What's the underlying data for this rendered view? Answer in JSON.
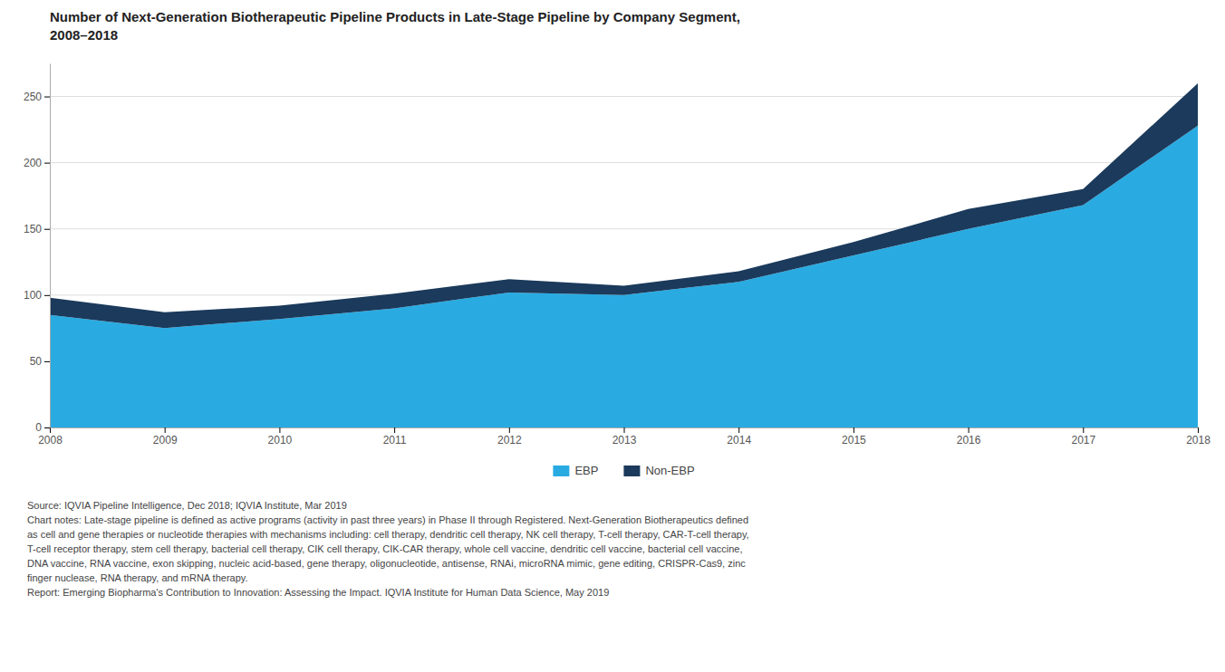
{
  "chart_data": {
    "type": "area",
    "title": "Number of Next-Generation Biotherapeutic Pipeline Products in Late-Stage Pipeline by Company Segment,\n2008–2018",
    "x": [
      2008,
      2009,
      2010,
      2011,
      2012,
      2013,
      2014,
      2015,
      2016,
      2017,
      2018
    ],
    "series": [
      {
        "name": "EBP",
        "color": "#29ABE2",
        "values": [
          85,
          75,
          82,
          90,
          102,
          100,
          110,
          130,
          150,
          168,
          228
        ]
      },
      {
        "name": "Non-EBP",
        "color": "#1B3A5C",
        "values": [
          13,
          12,
          10,
          11,
          10,
          7,
          8,
          10,
          15,
          12,
          32
        ]
      }
    ],
    "stacked": true,
    "xlim": [
      2008,
      2018
    ],
    "xticks": [
      2008,
      2009,
      2010,
      2011,
      2012,
      2013,
      2014,
      2015,
      2016,
      2017,
      2018
    ],
    "ylim": [
      0,
      275
    ],
    "yticks": [
      0,
      50,
      100,
      150,
      200,
      250
    ],
    "grid": true,
    "legend": "bottom",
    "annotations": [
      "Source: IQVIA Pipeline Intelligence, Dec 2018; IQVIA Institute, Mar 2019",
      "Chart notes: Late-stage pipeline is defined as active programs (activity in past three years) in Phase II through Registered. Next-Generation Biotherapeutics defined",
      "as cell and gene therapies or nucleotide therapies with mechanisms including: cell therapy, dendritic cell therapy, NK cell therapy, T-cell therapy, CAR-T-cell therapy,",
      "T-cell receptor therapy, stem cell therapy, bacterial cell therapy, CIK cell therapy, CIK-CAR therapy, whole cell vaccine, dendritic cell vaccine, bacterial cell vaccine,",
      "DNA vaccine, RNA vaccine, exon skipping, nucleic acid-based, gene therapy, oligonucleotide, antisense, RNAi, microRNA mimic, gene editing, CRISPR-Cas9, zinc",
      "finger nuclease, RNA therapy, and mRNA therapy.",
      "Report: Emerging Biopharma's Contribution to Innovation: Assessing the Impact. IQVIA Institute for Human Data Science, May 2019"
    ]
  }
}
